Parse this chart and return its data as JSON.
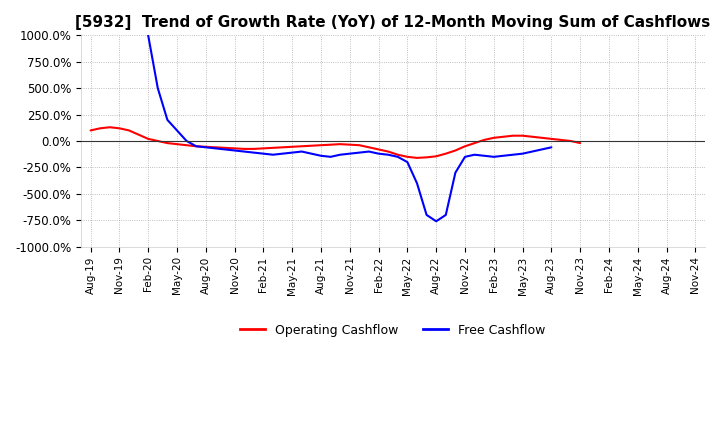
{
  "title": "[5932]  Trend of Growth Rate (YoY) of 12-Month Moving Sum of Cashflows",
  "title_fontsize": 11,
  "ylim": [
    -1000,
    1000
  ],
  "yticks": [
    -1000,
    -750,
    -500,
    -250,
    0,
    250,
    500,
    750,
    1000
  ],
  "ytick_labels": [
    "-1000.0%",
    "-750.0%",
    "-500.0%",
    "-250.0%",
    "0.0%",
    "250.0%",
    "500.0%",
    "750.0%",
    "1000.0%"
  ],
  "background_color": "#ffffff",
  "grid_color": "#aaaaaa",
  "operating_color": "#ff0000",
  "free_color": "#0000ff",
  "xtick_labels": [
    "Aug-19",
    "Nov-19",
    "Feb-20",
    "May-20",
    "Aug-20",
    "Nov-20",
    "Feb-21",
    "May-21",
    "Aug-21",
    "Nov-21",
    "Feb-22",
    "May-22",
    "Aug-22",
    "Nov-22",
    "Feb-23",
    "May-23",
    "Aug-23",
    "Nov-23",
    "Feb-24",
    "May-24",
    "Aug-24",
    "Nov-24"
  ],
  "operating_x": [
    0,
    1,
    2,
    3,
    4,
    5,
    6,
    7,
    8,
    9,
    10,
    11,
    12,
    13,
    14,
    15,
    16,
    17,
    18,
    19,
    20,
    21,
    22,
    23,
    24,
    25,
    26,
    27,
    28,
    29,
    30,
    31,
    32,
    33,
    34,
    35,
    36,
    37,
    38,
    39,
    40,
    41,
    42,
    43,
    44,
    45,
    46,
    47,
    48,
    49,
    50,
    51
  ],
  "operating_y": [
    100,
    120,
    130,
    120,
    100,
    60,
    20,
    0,
    -20,
    -30,
    -40,
    -50,
    -55,
    -60,
    -65,
    -70,
    -75,
    -75,
    -70,
    -65,
    -60,
    -55,
    -50,
    -45,
    -40,
    -35,
    -30,
    -35,
    -40,
    -60,
    -80,
    -100,
    -130,
    -150,
    -160,
    -155,
    -145,
    -120,
    -90,
    -50,
    -20,
    10,
    30,
    40,
    50,
    50,
    40,
    30,
    20,
    10,
    0,
    -20
  ],
  "free_x": [
    6,
    7,
    8,
    9,
    10,
    11,
    12,
    13,
    14,
    15,
    16,
    17,
    18,
    19,
    20,
    21,
    22,
    23,
    24,
    25,
    26,
    27,
    28,
    29,
    30,
    31,
    32,
    33,
    34,
    35,
    36,
    37,
    38,
    39,
    40,
    41,
    42,
    43,
    44,
    45,
    46,
    47,
    48
  ],
  "free_y": [
    1000,
    500,
    200,
    100,
    0,
    -50,
    -60,
    -70,
    -80,
    -90,
    -100,
    -110,
    -120,
    -130,
    -120,
    -110,
    -100,
    -120,
    -140,
    -150,
    -130,
    -120,
    -110,
    -100,
    -120,
    -130,
    -150,
    -200,
    -400,
    -700,
    -760,
    -700,
    -300,
    -150,
    -130,
    -140,
    -150,
    -140,
    -130,
    -120,
    -100,
    -80,
    -60
  ]
}
